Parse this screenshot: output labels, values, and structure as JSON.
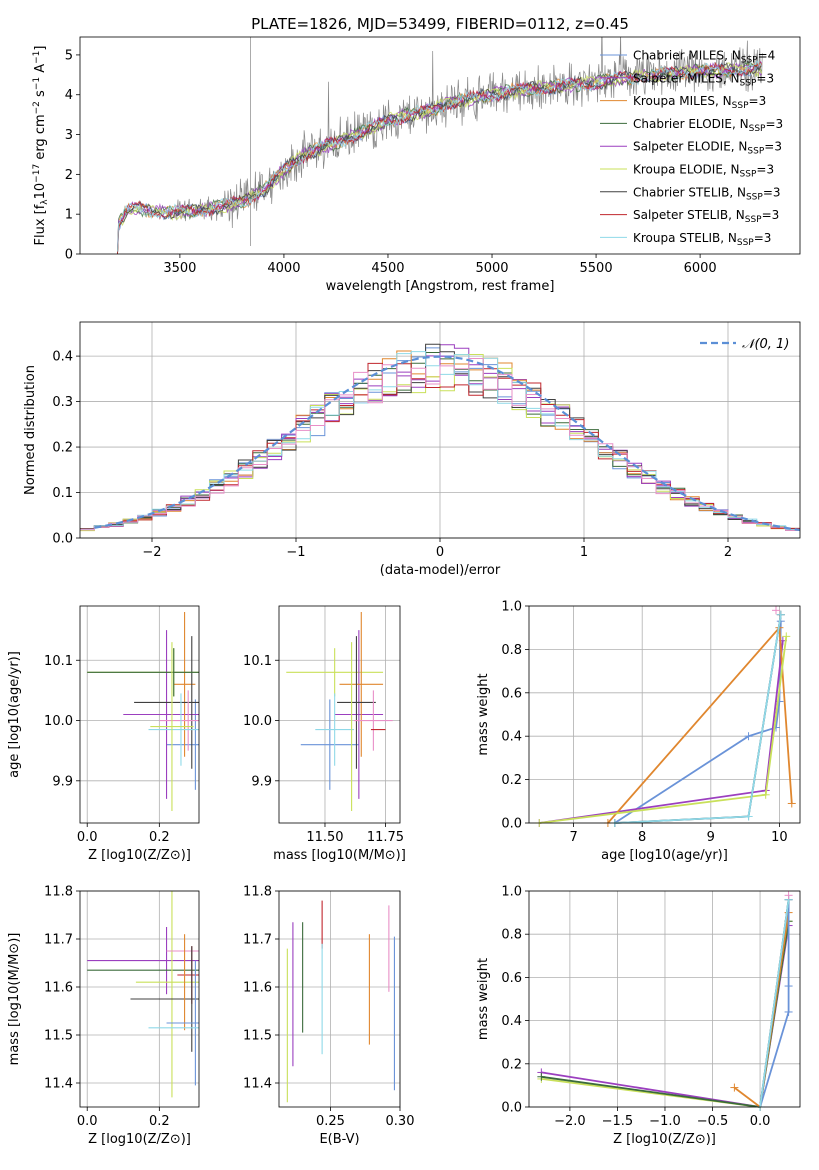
{
  "colors": {
    "chab_miles": "#6a93d8",
    "salp_miles": "#9b3fbf",
    "krou_miles": "#e0872f",
    "chab_elodie": "#3b6b3b",
    "salp_elodie": "#9b3fbf",
    "krou_elodie": "#c9e05a",
    "chab_stelib": "#404040",
    "salp_stelib": "#c0262d",
    "krou_stelib": "#8fd9e8",
    "extra_pink": "#e88fc7",
    "spectrum": "#888888",
    "normal": "#5b8fd6"
  },
  "chart_data": [
    {
      "id": "spectrum",
      "type": "line",
      "title": "PLATE=1826, MJD=53499, FIBERID=0112, z=0.45",
      "xlabel": "wavelength [Angstrom, rest frame]",
      "ylabel": "Flux [f_λ 10^-17 erg cm^-2 s^-1 A^-1]",
      "xlim": [
        3020,
        6480
      ],
      "ylim": [
        0,
        5.45
      ],
      "xticks": [
        3500,
        4000,
        4500,
        5000,
        5500,
        6000
      ],
      "yticks": [
        0,
        1,
        2,
        3,
        4,
        5
      ],
      "legend_position": "right",
      "legend": [
        {
          "label": "Chabrier MILES, N",
          "sub": "SSP",
          "suffix": "=4",
          "color": "chab_miles"
        },
        {
          "label": "Salpeter MILES, N",
          "sub": "SSP",
          "suffix": "=3",
          "color": "salp_miles"
        },
        {
          "label": "Kroupa MILES, N",
          "sub": "SSP",
          "suffix": "=3",
          "color": "krou_miles"
        },
        {
          "label": "Chabrier ELODIE, N",
          "sub": "SSP",
          "suffix": "=3",
          "color": "chab_elodie"
        },
        {
          "label": "Salpeter ELODIE, N",
          "sub": "SSP",
          "suffix": "=3",
          "color": "salp_elodie"
        },
        {
          "label": "Kroupa ELODIE, N",
          "sub": "SSP",
          "suffix": "=3",
          "color": "krou_elodie"
        },
        {
          "label": "Chabrier STELIB, N",
          "sub": "SSP",
          "suffix": "=3",
          "color": "chab_stelib"
        },
        {
          "label": "Salpeter STELIB, N",
          "sub": "SSP",
          "suffix": "=3",
          "color": "salp_stelib"
        },
        {
          "label": "Kroupa STELIB, N",
          "sub": "SSP",
          "suffix": "=3",
          "color": "krou_stelib"
        }
      ],
      "continuum": [
        [
          3200,
          0.0
        ],
        [
          3205,
          0.75
        ],
        [
          3250,
          1.1
        ],
        [
          3300,
          1.15
        ],
        [
          3400,
          1.05
        ],
        [
          3500,
          1.05
        ],
        [
          3600,
          1.1
        ],
        [
          3700,
          1.2
        ],
        [
          3800,
          1.3
        ],
        [
          3900,
          1.6
        ],
        [
          4000,
          2.1
        ],
        [
          4100,
          2.5
        ],
        [
          4200,
          2.7
        ],
        [
          4300,
          2.9
        ],
        [
          4400,
          3.1
        ],
        [
          4500,
          3.35
        ],
        [
          4600,
          3.5
        ],
        [
          4700,
          3.6
        ],
        [
          4800,
          3.8
        ],
        [
          4900,
          3.9
        ],
        [
          5000,
          4.0
        ],
        [
          5100,
          4.1
        ],
        [
          5200,
          4.15
        ],
        [
          5300,
          4.2
        ],
        [
          5400,
          4.25
        ],
        [
          5500,
          4.3
        ],
        [
          5600,
          4.4
        ],
        [
          5700,
          4.45
        ],
        [
          5800,
          4.5
        ],
        [
          5900,
          4.55
        ],
        [
          6000,
          4.6
        ],
        [
          6100,
          4.6
        ],
        [
          6200,
          4.65
        ],
        [
          6300,
          4.65
        ]
      ]
    },
    {
      "id": "histogram",
      "type": "bar",
      "xlabel": "(data-model)/error",
      "ylabel": "Normed distribution",
      "xlim": [
        -2.5,
        2.5
      ],
      "ylim": [
        0,
        0.475
      ],
      "xticks": [
        -2,
        -1,
        0,
        1,
        2
      ],
      "yticks": [
        0.0,
        0.1,
        0.2,
        0.3,
        0.4
      ],
      "legend_position": "top-right",
      "legend": [
        {
          "label": "N(0,1)",
          "color": "normal",
          "dashed": true
        }
      ],
      "bin_width": 0.1,
      "bin_start": -2.5
    },
    {
      "id": "age_vs_Z",
      "type": "scatter",
      "xlabel": "Z [log10(Z/Z⊙)]",
      "ylabel": "age  [log10(age/yr)]",
      "xlim": [
        -0.02,
        0.31
      ],
      "ylim": [
        9.83,
        10.19
      ],
      "xticks": [
        0.0,
        0.2
      ],
      "yticks": [
        9.9,
        10.0,
        10.1
      ],
      "errorbars": [
        {
          "color": "krou_elodie",
          "x": 0.24,
          "y": 10.08,
          "xerr": 0.24,
          "yerr": 0.04
        },
        {
          "color": "chab_miles",
          "x": 0.3,
          "y": 9.96,
          "xerr": 0.08,
          "yerr": 0.075
        },
        {
          "color": "salp_miles",
          "x": 0.22,
          "y": 10.01,
          "xerr": 0.12,
          "yerr": 0.14
        },
        {
          "color": "krou_miles",
          "x": 0.27,
          "y": 10.06,
          "xerr": 0.03,
          "yerr": 0.12
        },
        {
          "color": "chab_stelib",
          "x": 0.29,
          "y": 10.03,
          "xerr": 0.16,
          "yerr": 0.11
        },
        {
          "color": "extra_pink",
          "x": 0.28,
          "y": 10.0,
          "xerr": 0.08,
          "yerr": 0.05
        },
        {
          "color": "krou_stelib",
          "x": 0.26,
          "y": 9.985,
          "xerr": 0.09,
          "yerr": 0.06
        },
        {
          "color": "chab_elodie",
          "x": 0.24,
          "y": 10.08,
          "xerr": 0.24,
          "yerr": 0.04
        },
        {
          "color": "krou_elodie",
          "x": 0.235,
          "y": 9.99,
          "xerr": 0.06,
          "yerr": 0.14
        }
      ]
    },
    {
      "id": "age_vs_mass",
      "type": "scatter",
      "xlabel": "mass [log10(M/M⊙)]",
      "ylabel": "",
      "xlim": [
        11.31,
        11.81
      ],
      "ylim": [
        9.83,
        10.19
      ],
      "xticks": [
        11.5,
        11.75
      ],
      "yticks": [
        9.9,
        10.0,
        10.1
      ],
      "errorbars": [
        {
          "color": "krou_elodie",
          "x": 11.54,
          "y": 10.08,
          "xerr": 0.2,
          "yerr": 0.04
        },
        {
          "color": "chab_miles",
          "x": 11.52,
          "y": 9.96,
          "xerr": 0.12,
          "yerr": 0.075
        },
        {
          "color": "salp_miles",
          "x": 11.64,
          "y": 10.01,
          "xerr": 0.1,
          "yerr": 0.14
        },
        {
          "color": "krou_miles",
          "x": 11.65,
          "y": 10.06,
          "xerr": 0.09,
          "yerr": 0.12
        },
        {
          "color": "chab_stelib",
          "x": 11.63,
          "y": 10.03,
          "xerr": 0.08,
          "yerr": 0.11
        },
        {
          "color": "extra_pink",
          "x": 11.7,
          "y": 10.0,
          "xerr": 0.08,
          "yerr": 0.05
        },
        {
          "color": "krou_stelib",
          "x": 11.54,
          "y": 9.985,
          "xerr": 0.08,
          "yerr": 0.06
        },
        {
          "color": "salp_stelib",
          "x": 11.72,
          "y": 9.985,
          "xerr": 0.03,
          "yerr": 0.0
        },
        {
          "color": "krou_elodie",
          "x": 11.61,
          "y": 9.99,
          "xerr": 0.0,
          "yerr": 0.14
        }
      ]
    },
    {
      "id": "mass_weight_vs_age",
      "type": "line",
      "xlabel": "age  [log10(age/yr)]",
      "ylabel": "mass weight",
      "xlim": [
        6.35,
        10.3
      ],
      "ylim": [
        0,
        1.0
      ],
      "xticks": [
        7,
        8,
        9,
        10
      ],
      "yticks": [
        0.0,
        0.2,
        0.4,
        0.6,
        0.8,
        1.0
      ],
      "series": [
        {
          "color": "chab_miles",
          "points": [
            [
              7.6,
              0.0
            ],
            [
              9.55,
              0.4
            ],
            [
              9.95,
              0.44
            ],
            [
              10.0,
              0.56
            ],
            [
              10.02,
              0.93
            ]
          ]
        },
        {
          "color": "salp_miles",
          "points": [
            [
              6.5,
              0.0
            ],
            [
              9.8,
              0.15
            ],
            [
              10.05,
              0.84
            ]
          ]
        },
        {
          "color": "krou_miles",
          "points": [
            [
              7.5,
              0.0
            ],
            [
              10.0,
              0.9
            ],
            [
              10.18,
              0.09
            ]
          ]
        },
        {
          "color": "krou_elodie",
          "points": [
            [
              6.5,
              0.0
            ],
            [
              9.8,
              0.13
            ],
            [
              10.1,
              0.86
            ]
          ]
        },
        {
          "color": "chab_stelib",
          "points": [
            [
              7.6,
              0.0
            ],
            [
              9.55,
              0.03
            ],
            [
              10.02,
              0.96
            ]
          ]
        },
        {
          "color": "krou_stelib",
          "points": [
            [
              7.6,
              0.0
            ],
            [
              9.55,
              0.03
            ],
            [
              10.02,
              0.96
            ]
          ]
        },
        {
          "color": "extra_pink",
          "points": [
            [
              9.95,
              0.98
            ]
          ]
        }
      ]
    },
    {
      "id": "mass_vs_Z",
      "type": "scatter",
      "xlabel": "Z [log10(Z/Z⊙)]",
      "ylabel": "mass [log10(M/M⊙)]",
      "xlim": [
        -0.02,
        0.31
      ],
      "ylim": [
        11.35,
        11.8
      ],
      "xticks": [
        0.0,
        0.2
      ],
      "yticks": [
        11.4,
        11.5,
        11.6,
        11.7,
        11.8
      ],
      "errorbars": [
        {
          "color": "salp_miles",
          "x": 0.22,
          "y": 11.655,
          "xerr": 0.22,
          "yerr": 0.07
        },
        {
          "color": "chab_elodie",
          "x": 0.24,
          "y": 11.635,
          "xerr": 0.24,
          "yerr": 0.0
        },
        {
          "color": "krou_elodie",
          "x": 0.235,
          "y": 11.61,
          "xerr": 0.1,
          "yerr": 0.24
        },
        {
          "color": "extra_pink",
          "x": 0.27,
          "y": 11.675,
          "xerr": 0.05,
          "yerr": 0.0
        },
        {
          "color": "salp_stelib",
          "x": 0.29,
          "y": 11.625,
          "xerr": 0.04,
          "yerr": 0.06
        },
        {
          "color": "chab_stelib",
          "x": 0.29,
          "y": 11.575,
          "xerr": 0.17,
          "yerr": 0.11
        },
        {
          "color": "krou_miles",
          "x": 0.27,
          "y": 11.61,
          "xerr": 0.0,
          "yerr": 0.1
        },
        {
          "color": "chab_miles",
          "x": 0.3,
          "y": 11.525,
          "xerr": 0.08,
          "yerr": 0.13
        },
        {
          "color": "krou_stelib",
          "x": 0.26,
          "y": 11.515,
          "xerr": 0.09,
          "yerr": 0.0
        }
      ]
    },
    {
      "id": "mass_vs_ebv",
      "type": "scatter",
      "xlabel": "E(B-V)",
      "ylabel": "",
      "xlim": [
        0.213,
        0.3
      ],
      "ylim": [
        11.35,
        11.8
      ],
      "xticks": [
        0.25,
        0.3
      ],
      "yticks": [
        11.4,
        11.5,
        11.6,
        11.7,
        11.8
      ],
      "errorbars": [
        {
          "color": "krou_elodie",
          "x": 0.219,
          "y": 11.52,
          "xerr": 0,
          "yerr": 0.16
        },
        {
          "color": "salp_miles",
          "x": 0.223,
          "y": 11.585,
          "xerr": 0,
          "yerr": 0.15
        },
        {
          "color": "chab_elodie",
          "x": 0.23,
          "y": 11.62,
          "xerr": 0,
          "yerr": 0.115
        },
        {
          "color": "salp_stelib",
          "x": 0.244,
          "y": 11.73,
          "xerr": 0,
          "yerr": 0.05
        },
        {
          "color": "krou_stelib",
          "x": 0.244,
          "y": 11.575,
          "xerr": 0,
          "yerr": 0.115
        },
        {
          "color": "krou_miles",
          "x": 0.278,
          "y": 11.595,
          "xerr": 0,
          "yerr": 0.115
        },
        {
          "color": "extra_pink",
          "x": 0.292,
          "y": 11.68,
          "xerr": 0,
          "yerr": 0.09
        },
        {
          "color": "chab_miles",
          "x": 0.296,
          "y": 11.545,
          "xerr": 0,
          "yerr": 0.16
        }
      ]
    },
    {
      "id": "mass_weight_vs_Z",
      "type": "line",
      "xlabel": "Z [log10(Z/Z⊙)]",
      "ylabel": "mass weight",
      "xlim": [
        -2.43,
        0.42
      ],
      "ylim": [
        0,
        1.0
      ],
      "xticks": [
        -2.0,
        -1.5,
        -1.0,
        -0.5,
        0.0
      ],
      "yticks": [
        0.0,
        0.2,
        0.4,
        0.6,
        0.8,
        1.0
      ],
      "series": [
        {
          "color": "salp_miles",
          "points": [
            [
              -2.3,
              0.16
            ],
            [
              0.0,
              0.0
            ],
            [
              0.3,
              0.84
            ]
          ]
        },
        {
          "color": "krou_elodie",
          "points": [
            [
              -2.3,
              0.13
            ],
            [
              0.0,
              0.0
            ],
            [
              0.3,
              0.86
            ]
          ]
        },
        {
          "color": "chab_elodie",
          "points": [
            [
              -2.3,
              0.14
            ],
            [
              0.0,
              0.0
            ],
            [
              0.3,
              0.86
            ]
          ]
        },
        {
          "color": "krou_miles",
          "points": [
            [
              -0.27,
              0.09
            ],
            [
              0.0,
              0.0
            ],
            [
              0.3,
              0.9
            ]
          ]
        },
        {
          "color": "chab_miles",
          "points": [
            [
              0.0,
              0.0
            ],
            [
              0.3,
              0.44
            ],
            [
              0.3,
              0.56
            ],
            [
              0.3,
              0.96
            ]
          ]
        },
        {
          "color": "chab_stelib",
          "points": [
            [
              0.0,
              0.0
            ],
            [
              0.3,
              0.96
            ]
          ]
        },
        {
          "color": "krou_stelib",
          "points": [
            [
              0.0,
              0.0
            ],
            [
              0.3,
              0.96
            ]
          ]
        },
        {
          "color": "extra_pink",
          "points": [
            [
              0.3,
              0.98
            ]
          ]
        }
      ]
    }
  ]
}
